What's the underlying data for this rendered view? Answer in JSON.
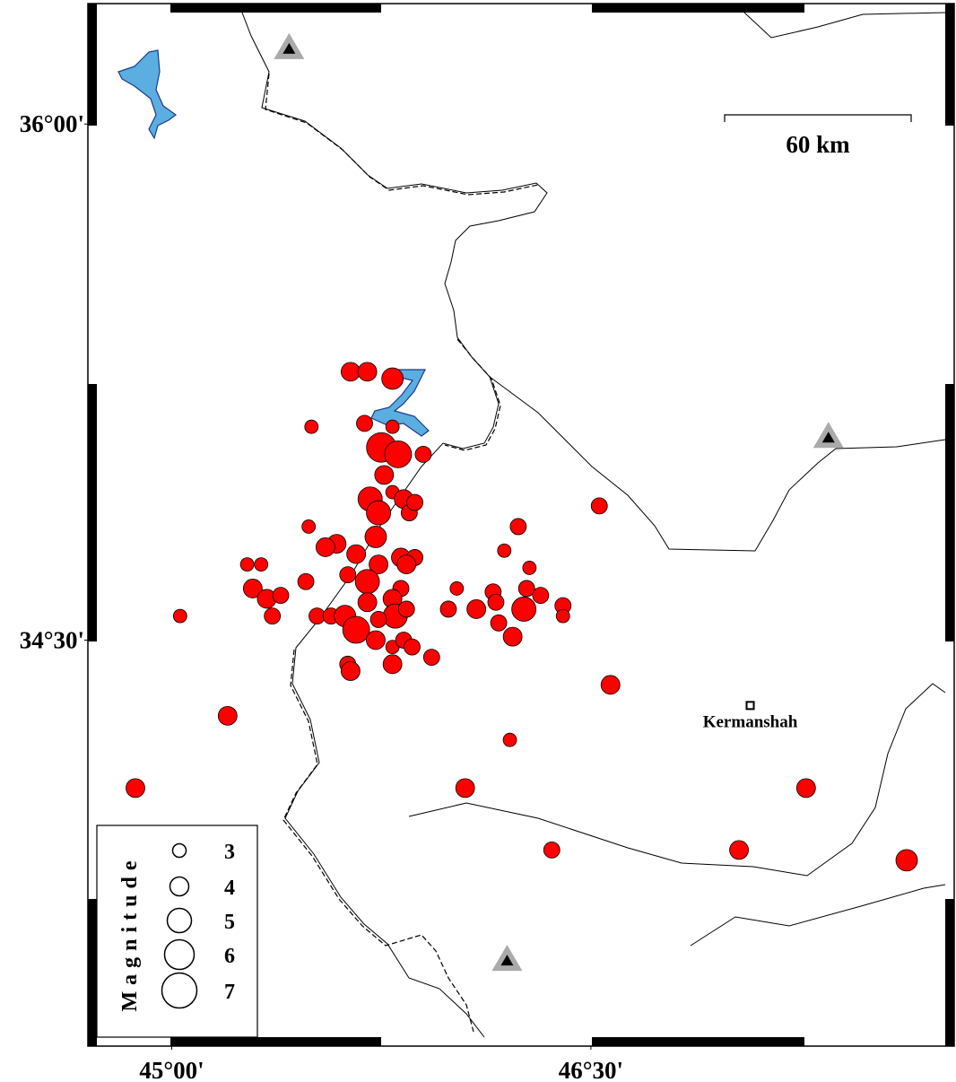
{
  "map": {
    "xlim": [
      44.7,
      47.8
    ],
    "ylim": [
      33.32,
      36.35
    ],
    "xticks": [
      {
        "value": 45,
        "label": "45°00'"
      },
      {
        "value": 46.5,
        "label": "46°30'"
      }
    ],
    "yticks": [
      {
        "value": 34.5,
        "label": "34°30'"
      },
      {
        "value": 36,
        "label": "36°00'"
      }
    ],
    "events": {
      "color": "#ff0000",
      "lon": [
        45.64,
        45.7,
        45.79,
        45.5,
        45.69,
        45.79,
        45.75,
        45.81,
        45.9,
        45.76,
        45.71,
        45.79,
        45.83,
        45.74,
        45.85,
        45.87,
        46.53,
        45.49,
        46.24,
        45.73,
        45.59,
        45.55,
        45.66,
        45.82,
        45.87,
        45.84,
        45.74,
        46.19,
        46.28,
        45.27,
        45.32,
        45.63,
        45.48,
        45.7,
        45.29,
        45.34,
        45.39,
        45.36,
        45.03,
        45.82,
        45.79,
        45.7,
        46.02,
        45.99,
        46.09,
        46.15,
        46.16,
        46.27,
        46.26,
        46.32,
        46.4,
        46.4,
        46.17,
        46.22,
        45.52,
        45.57,
        45.62,
        45.66,
        45.73,
        45.8,
        45.84,
        45.74,
        45.79,
        45.83,
        45.86,
        45.93,
        45.79,
        45.63,
        45.64,
        46.57,
        45.2,
        46.21,
        44.87,
        46.05,
        47.27,
        46.36,
        47.03,
        47.63
      ],
      "lat": [
        35.28,
        35.28,
        35.26,
        35.12,
        35.13,
        35.12,
        35.06,
        35.04,
        35.04,
        34.98,
        34.91,
        34.93,
        34.91,
        34.87,
        34.87,
        34.9,
        34.89,
        34.83,
        34.83,
        34.8,
        34.78,
        34.77,
        34.75,
        34.74,
        34.74,
        34.72,
        34.72,
        34.76,
        34.71,
        34.72,
        34.72,
        34.69,
        34.67,
        34.67,
        34.65,
        34.62,
        34.63,
        34.57,
        34.57,
        34.65,
        34.62,
        34.61,
        34.65,
        34.59,
        34.59,
        34.64,
        34.61,
        34.65,
        34.59,
        34.63,
        34.6,
        34.57,
        34.55,
        34.51,
        34.57,
        34.57,
        34.57,
        34.53,
        34.5,
        34.57,
        34.59,
        34.56,
        34.48,
        34.5,
        34.48,
        34.45,
        34.43,
        34.43,
        34.41,
        34.37,
        34.28,
        34.21,
        34.07,
        34.07,
        34.07,
        33.89,
        33.89,
        33.86
      ],
      "magnitude": [
        4,
        4,
        4.5,
        3,
        3.5,
        3,
        6,
        5.5,
        3.5,
        4,
        5,
        3,
        4,
        5,
        3.5,
        3.5,
        3.5,
        3,
        3.5,
        4.5,
        4,
        4,
        4,
        4,
        3.5,
        4,
        4,
        3,
        3,
        3,
        3,
        3.5,
        3.5,
        5,
        4,
        4,
        3.5,
        3.5,
        3,
        3.5,
        4,
        4,
        3,
        3.5,
        4,
        3.5,
        3.5,
        3.5,
        5,
        3.5,
        3.5,
        3,
        3.5,
        4,
        3.5,
        3.5,
        4.5,
        5.5,
        4,
        5,
        3.5,
        3.5,
        3,
        3.5,
        3.5,
        3.5,
        4,
        3.5,
        4,
        4,
        4,
        3,
        4,
        4,
        4,
        3.5,
        4,
        4.5
      ]
    },
    "stations": {
      "lon": [
        45.42,
        47.35,
        46.2
      ],
      "lat": [
        36.22,
        35.09,
        33.57
      ]
    },
    "city": {
      "name": "Kermanshah",
      "lon": 47.07,
      "lat": 34.31
    },
    "scale_bar": {
      "label": "60 km"
    },
    "legend": {
      "title": "Magnitude",
      "magnitudes": [
        3,
        4,
        5,
        6,
        7
      ]
    }
  }
}
